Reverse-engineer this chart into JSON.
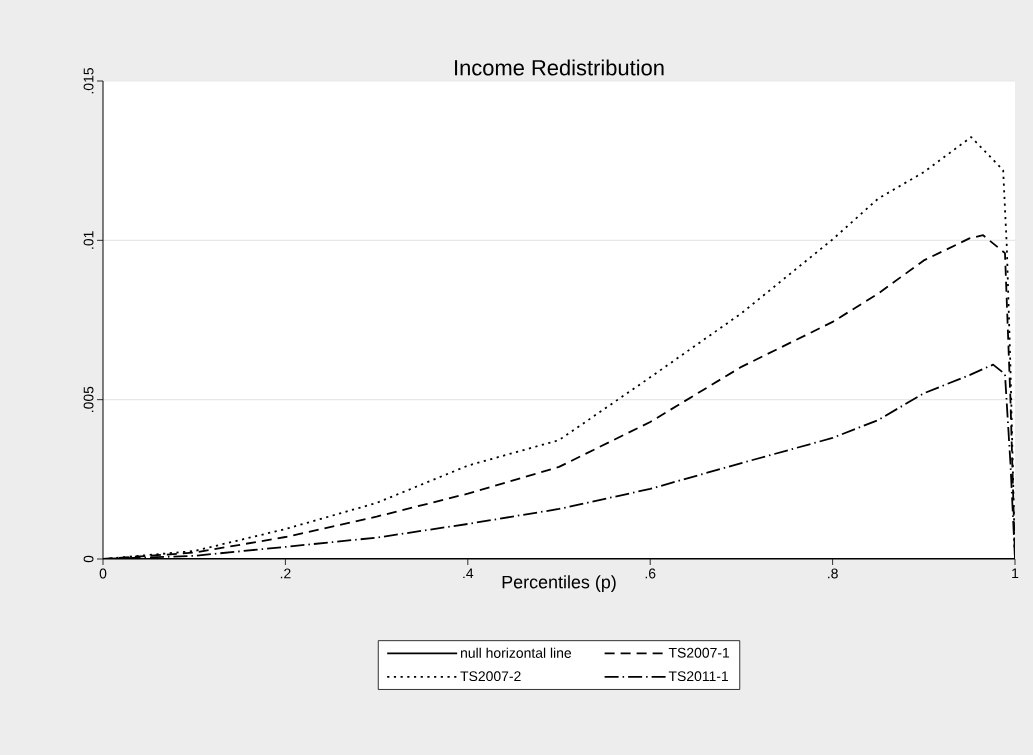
{
  "chart_data": {
    "type": "line",
    "title": "Income Redistribution",
    "xlabel": "Percentiles (p)",
    "xlim": [
      0,
      1
    ],
    "ylim": [
      0,
      0.015
    ],
    "xticks": [
      0,
      {
        "value": 0.2,
        "label": ".2"
      },
      {
        "value": 0.4,
        "label": ".4"
      },
      {
        "value": 0.6,
        "label": ".6"
      },
      {
        "value": 0.8,
        "label": ".8"
      },
      1
    ],
    "yticks": [
      0,
      {
        "value": 0.005,
        "label": ".005"
      },
      {
        "value": 0.01,
        "label": ".01"
      },
      {
        "value": 0.015,
        "label": ".015"
      }
    ],
    "grid": "y",
    "legend": "bottom",
    "series": [
      {
        "name": "null horizontal line",
        "color": "#000000",
        "line_style": "solid",
        "x": [
          0,
          1
        ],
        "values": [
          0,
          0
        ]
      },
      {
        "name": "TS2007-1",
        "color": "#000000",
        "line_style": "dashed",
        "x": [
          0,
          0.1,
          0.2,
          0.3,
          0.4,
          0.5,
          0.6,
          0.7,
          0.8,
          0.85,
          0.9,
          0.95,
          0.965,
          0.989,
          0.995,
          1
        ],
        "values": [
          0,
          0.0002,
          0.00069,
          0.00133,
          0.00205,
          0.00289,
          0.0043,
          0.00603,
          0.00744,
          0.00833,
          0.00937,
          0.01006,
          0.01016,
          0.0096,
          0.005,
          0
        ]
      },
      {
        "name": "TS2007-2",
        "color": "#000000",
        "line_style": "dotted",
        "x": [
          0,
          0.1,
          0.2,
          0.3,
          0.4,
          0.5,
          0.6,
          0.7,
          0.8,
          0.85,
          0.9,
          0.952,
          0.987,
          0.991,
          0.995,
          1
        ],
        "values": [
          0,
          0.00025,
          0.00094,
          0.00176,
          0.00293,
          0.00373,
          0.0057,
          0.00771,
          0.01003,
          0.01131,
          0.01214,
          0.01324,
          0.0122,
          0.0098,
          0.006,
          0
        ]
      },
      {
        "name": "TS2011-1",
        "color": "#000000",
        "line_style": "dashdot",
        "x": [
          0,
          0.1,
          0.2,
          0.3,
          0.4,
          0.5,
          0.6,
          0.7,
          0.8,
          0.85,
          0.9,
          0.95,
          0.976,
          0.989,
          0.995,
          1
        ],
        "values": [
          0,
          0.0001,
          0.00038,
          0.00067,
          0.0011,
          0.00157,
          0.0022,
          0.00301,
          0.0038,
          0.00436,
          0.0052,
          0.00577,
          0.0061,
          0.0058,
          0.003,
          0
        ]
      }
    ]
  }
}
